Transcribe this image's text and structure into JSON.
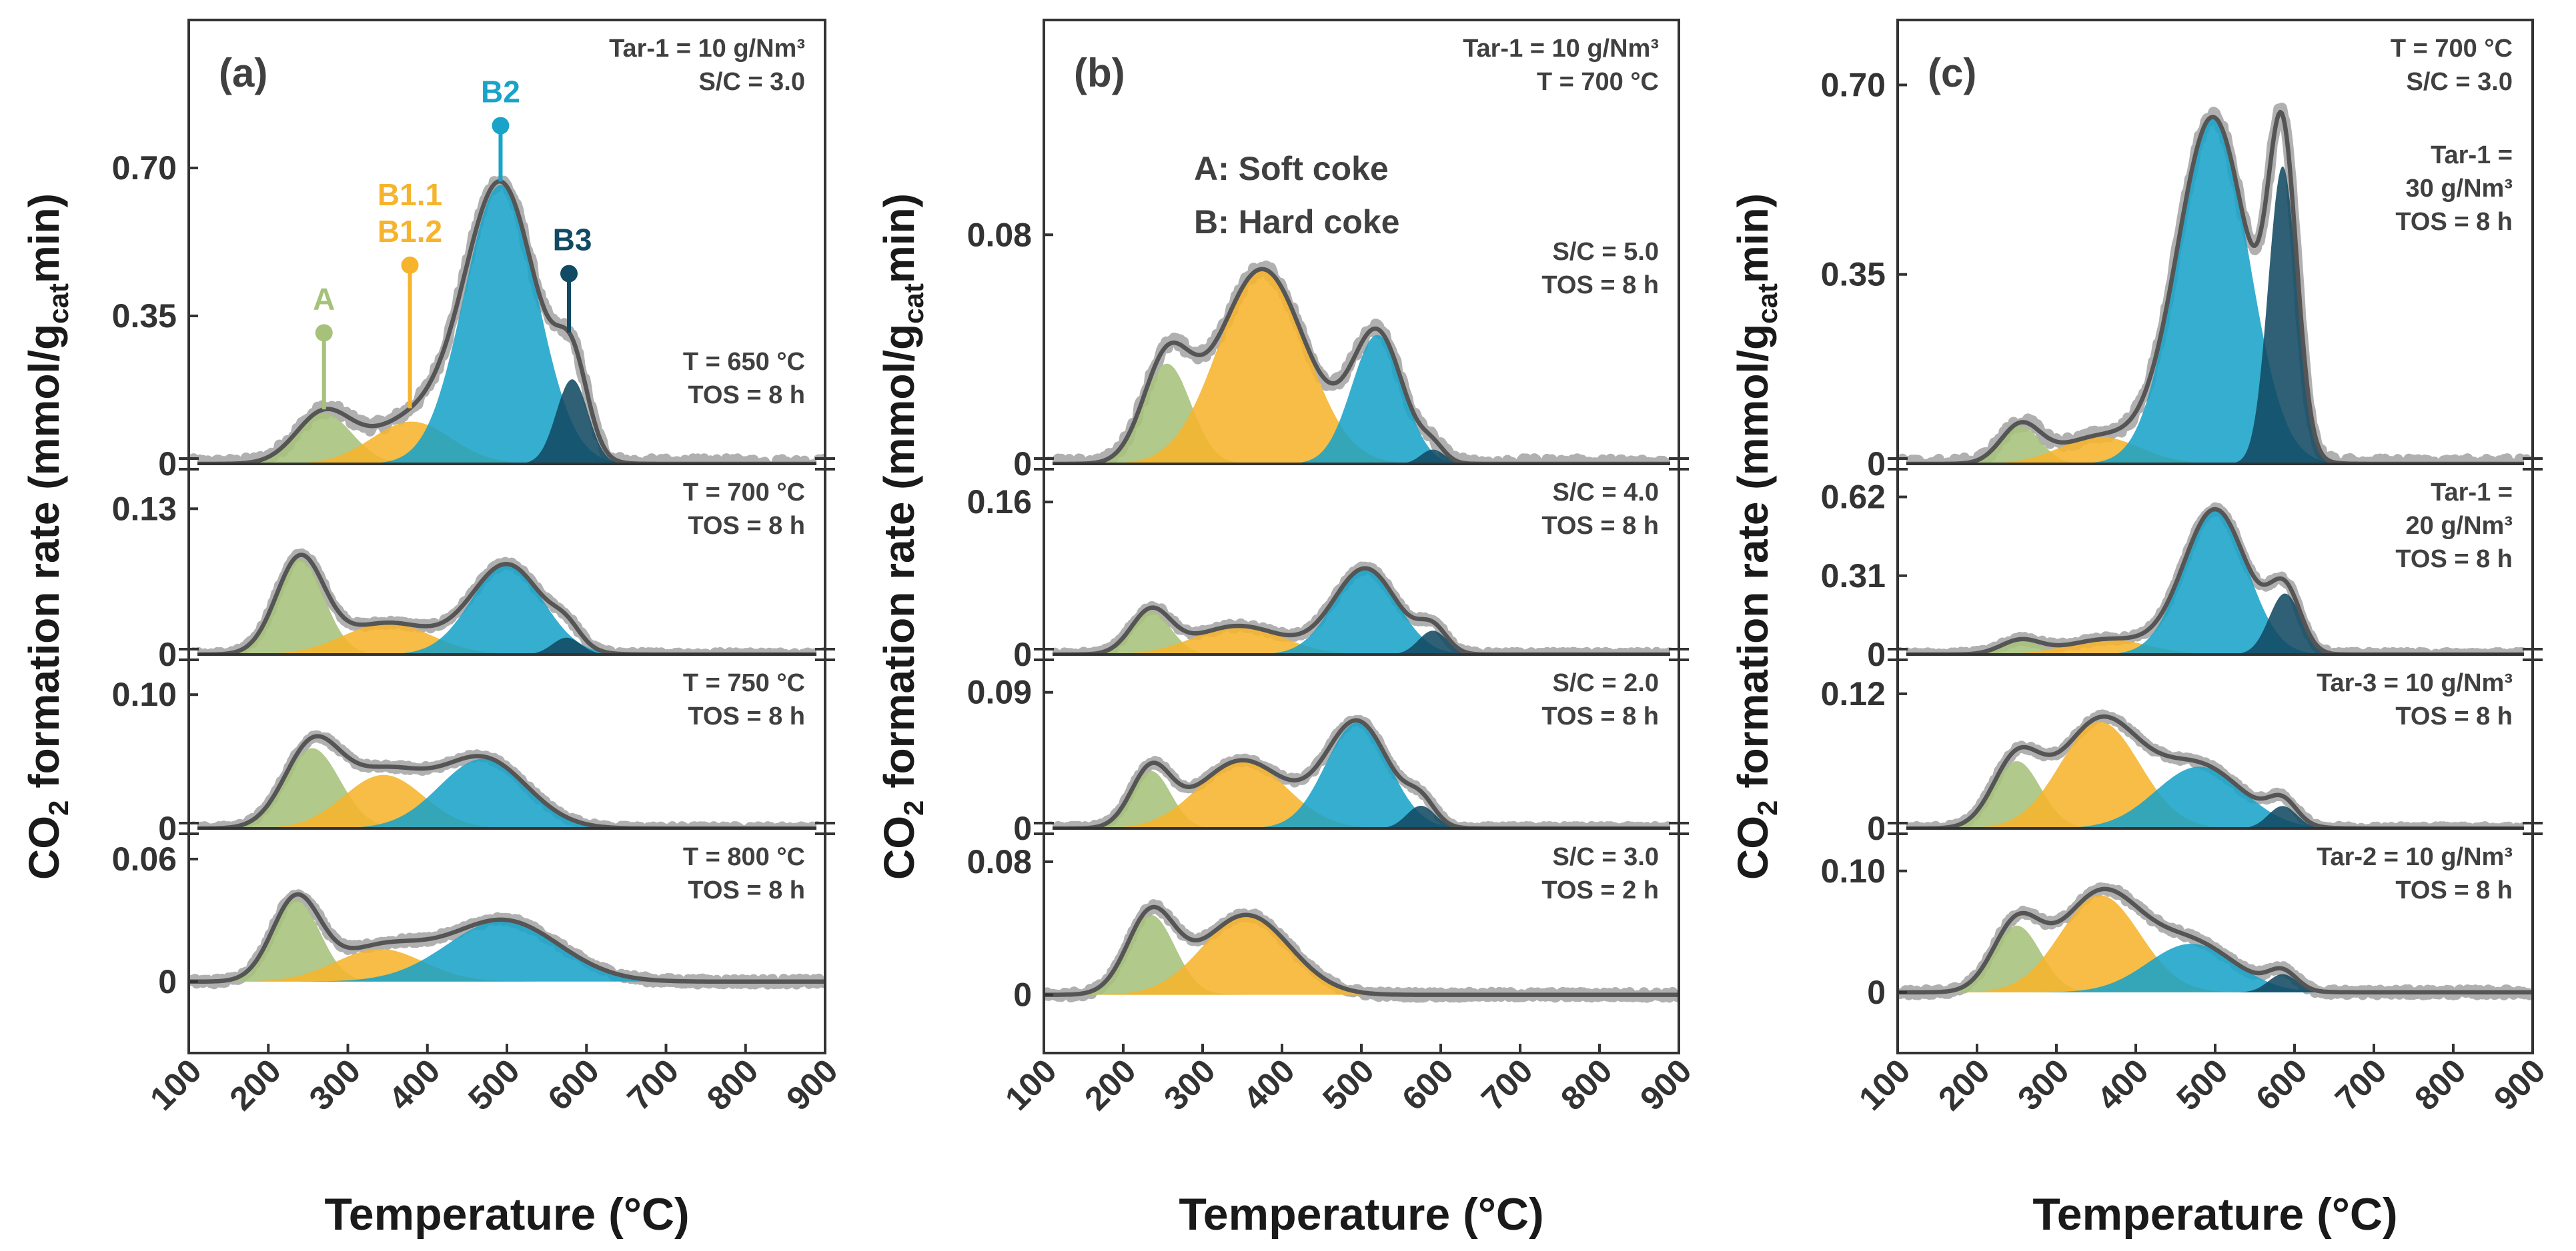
{
  "chart_data": {
    "type": "area",
    "figure_kind": "CO2 temperature-programmed oxidation profiles with deconvoluted peaks",
    "colors": {
      "A": "#a6c27a",
      "B1": "#f6b42c",
      "B2": "#1aa3c8",
      "B3": "#124a63",
      "fit": "#555555",
      "raw": "#b0b0b0",
      "axis": "#333333"
    },
    "xlabel": "Temperature (°C)",
    "ylabel_main": "CO",
    "ylabel_sub": "2",
    "ylabel_mid": " formation rate (mmol/g",
    "ylabel_cat": "cat",
    "ylabel_end": "min)",
    "x_ticks": [
      "100",
      "200",
      "300",
      "400",
      "500",
      "600",
      "700",
      "800",
      "900"
    ],
    "xlim": [
      100,
      900
    ],
    "panels": [
      {
        "label": "(a)",
        "legend": null,
        "subplots": [
          {
            "id": "a1",
            "ylim": [
              0,
              1.05
            ],
            "y_ticks": [
              {
                "v": 0,
                "label": "0"
              },
              {
                "v": 0.35,
                "label": "0.35"
              },
              {
                "v": 0.7,
                "label": "0.70"
              }
            ],
            "annotations": [
              "Tar-1 = 10 g/Nm³",
              "S/C = 3.0"
            ],
            "annotations2": [
              "T = 650 °C",
              "TOS = 8 h"
            ],
            "peaks": [
              {
                "name": "A",
                "center": 270,
                "height": 0.12,
                "width": 35
              },
              {
                "name": "B1",
                "center": 380,
                "height": 0.1,
                "width": 50
              },
              {
                "name": "B2",
                "center": 492,
                "height": 0.66,
                "width": 46
              },
              {
                "name": "B3",
                "center": 582,
                "height": 0.2,
                "width": 20
              }
            ],
            "markers": [
              {
                "label": "A",
                "x": 270,
                "y": 0.31,
                "color": "A"
              },
              {
                "label": "B1.1",
                "label2": "B1.2",
                "x": 378,
                "y": 0.47,
                "color": "B1"
              },
              {
                "label": "B2",
                "x": 492,
                "y": 0.8,
                "color": "B2"
              },
              {
                "label": "B3",
                "x": 578,
                "y": 0.45,
                "color": "B3"
              }
            ]
          },
          {
            "id": "a2",
            "ylim": [
              0,
              0.17
            ],
            "y_ticks": [
              {
                "v": 0,
                "label": "0"
              },
              {
                "v": 0.13,
                "label": "0.13"
              }
            ],
            "annotations": [
              "T = 700 °C",
              "TOS = 8 h"
            ],
            "peaks": [
              {
                "name": "A",
                "center": 240,
                "height": 0.085,
                "width": 30
              },
              {
                "name": "B1",
                "center": 350,
                "height": 0.028,
                "width": 55
              },
              {
                "name": "B2",
                "center": 500,
                "height": 0.08,
                "width": 45
              },
              {
                "name": "B3",
                "center": 575,
                "height": 0.015,
                "width": 18
              }
            ]
          },
          {
            "id": "a3",
            "ylim": [
              0,
              0.13
            ],
            "y_ticks": [
              {
                "v": 0,
                "label": "0"
              },
              {
                "v": 0.1,
                "label": "0.10"
              }
            ],
            "annotations": [
              "T = 750 °C",
              "TOS = 8 h"
            ],
            "peaks": [
              {
                "name": "A",
                "center": 255,
                "height": 0.06,
                "width": 35
              },
              {
                "name": "B1",
                "center": 345,
                "height": 0.04,
                "width": 50
              },
              {
                "name": "B2",
                "center": 470,
                "height": 0.052,
                "width": 55
              }
            ]
          },
          {
            "id": "a4",
            "ylim": [
              -0.035,
              0.075
            ],
            "y_ticks": [
              {
                "v": 0,
                "label": "0"
              },
              {
                "v": 0.06,
                "label": "0.06"
              }
            ],
            "annotations": [
              "T = 800 °C",
              "TOS = 8 h"
            ],
            "peaks": [
              {
                "name": "A",
                "center": 235,
                "height": 0.04,
                "width": 30
              },
              {
                "name": "B1",
                "center": 340,
                "height": 0.016,
                "width": 55
              },
              {
                "name": "B2",
                "center": 495,
                "height": 0.03,
                "width": 70
              }
            ]
          }
        ]
      },
      {
        "label": "(b)",
        "legend": [
          "A: Soft coke",
          "B: Hard coke"
        ],
        "subplots": [
          {
            "id": "b1",
            "ylim": [
              0,
              0.155
            ],
            "y_ticks": [
              {
                "v": 0,
                "label": "0"
              },
              {
                "v": 0.08,
                "label": "0.08"
              }
            ],
            "annotations": [
              "Tar-1 = 10 g/Nm³",
              "T = 700 °C"
            ],
            "annotations2": [
              "S/C = 5.0",
              "TOS = 8 h"
            ],
            "peaks": [
              {
                "name": "A",
                "center": 255,
                "height": 0.035,
                "width": 30
              },
              {
                "name": "B1",
                "center": 375,
                "height": 0.068,
                "width": 55
              },
              {
                "name": "B2",
                "center": 520,
                "height": 0.045,
                "width": 32
              },
              {
                "name": "B3",
                "center": 590,
                "height": 0.005,
                "width": 15
              }
            ]
          },
          {
            "id": "b2",
            "ylim": [
              0,
              0.2
            ],
            "y_ticks": [
              {
                "v": 0,
                "label": "0"
              },
              {
                "v": 0.16,
                "label": "0.16"
              }
            ],
            "annotations": [
              "S/C = 4.0",
              "TOS = 8 h"
            ],
            "peaks": [
              {
                "name": "A",
                "center": 235,
                "height": 0.045,
                "width": 25
              },
              {
                "name": "B1",
                "center": 345,
                "height": 0.03,
                "width": 55
              },
              {
                "name": "B2",
                "center": 505,
                "height": 0.09,
                "width": 40
              },
              {
                "name": "B3",
                "center": 590,
                "height": 0.025,
                "width": 18
              }
            ]
          },
          {
            "id": "b3",
            "ylim": [
              0,
              0.115
            ],
            "y_ticks": [
              {
                "v": 0,
                "label": "0"
              },
              {
                "v": 0.09,
                "label": "0.09"
              }
            ],
            "annotations": [
              "S/C = 2.0",
              "TOS = 8 h"
            ],
            "peaks": [
              {
                "name": "A",
                "center": 235,
                "height": 0.038,
                "width": 25
              },
              {
                "name": "B1",
                "center": 350,
                "height": 0.045,
                "width": 55
              },
              {
                "name": "B2",
                "center": 495,
                "height": 0.07,
                "width": 40
              },
              {
                "name": "B3",
                "center": 575,
                "height": 0.015,
                "width": 18
              }
            ]
          },
          {
            "id": "b4",
            "ylim": [
              -0.035,
              0.1
            ],
            "y_ticks": [
              {
                "v": 0,
                "label": "0"
              },
              {
                "v": 0.08,
                "label": "0.08"
              }
            ],
            "annotations": [
              "S/C = 3.0",
              "TOS = 2 h"
            ],
            "peaks": [
              {
                "name": "A",
                "center": 235,
                "height": 0.048,
                "width": 30
              },
              {
                "name": "B1",
                "center": 355,
                "height": 0.048,
                "width": 55
              }
            ]
          }
        ]
      },
      {
        "label": "(c)",
        "legend": null,
        "subplots": [
          {
            "id": "c1",
            "ylim": [
              0,
              0.82
            ],
            "y_ticks": [
              {
                "v": 0,
                "label": "0"
              },
              {
                "v": 0.35,
                "label": "0.35"
              },
              {
                "v": 0.7,
                "label": "0.70"
              }
            ],
            "annotations": [
              "T = 700 °C",
              "S/C = 3.0"
            ],
            "annotations2": [
              "Tar-1 =",
              "30 g/Nm³",
              "TOS = 8 h"
            ],
            "peaks": [
              {
                "name": "A",
                "center": 255,
                "height": 0.07,
                "width": 25
              },
              {
                "name": "B1",
                "center": 355,
                "height": 0.05,
                "width": 50
              },
              {
                "name": "B2",
                "center": 497,
                "height": 0.64,
                "width": 45
              },
              {
                "name": "B3",
                "center": 585,
                "height": 0.55,
                "width": 18
              }
            ]
          },
          {
            "id": "c2",
            "ylim": [
              0,
              0.75
            ],
            "y_ticks": [
              {
                "v": 0,
                "label": "0"
              },
              {
                "v": 0.31,
                "label": "0.31"
              },
              {
                "v": 0.62,
                "label": "0.62"
              }
            ],
            "annotations": [
              "Tar-1 =",
              "20 g/Nm³",
              "TOS = 8 h"
            ],
            "peaks": [
              {
                "name": "A",
                "center": 255,
                "height": 0.055,
                "width": 25
              },
              {
                "name": "B1",
                "center": 365,
                "height": 0.06,
                "width": 50
              },
              {
                "name": "B2",
                "center": 500,
                "height": 0.57,
                "width": 40
              },
              {
                "name": "B3",
                "center": 588,
                "height": 0.24,
                "width": 20
              }
            ]
          },
          {
            "id": "c3",
            "ylim": [
              0,
              0.155
            ],
            "y_ticks": [
              {
                "v": 0,
                "label": "0"
              },
              {
                "v": 0.12,
                "label": "0.12"
              }
            ],
            "annotations": [
              "Tar-3 = 10 g/Nm³",
              "TOS = 8 h"
            ],
            "peaks": [
              {
                "name": "A",
                "center": 250,
                "height": 0.06,
                "width": 30
              },
              {
                "name": "B1",
                "center": 355,
                "height": 0.095,
                "width": 50
              },
              {
                "name": "B2",
                "center": 480,
                "height": 0.055,
                "width": 55
              },
              {
                "name": "B3",
                "center": 585,
                "height": 0.02,
                "width": 18
              }
            ]
          },
          {
            "id": "c4",
            "ylim": [
              -0.05,
              0.135
            ],
            "y_ticks": [
              {
                "v": 0,
                "label": "0"
              },
              {
                "v": 0.1,
                "label": "0.10"
              }
            ],
            "annotations": [
              "Tar-2 = 10 g/Nm³",
              "TOS = 8 h"
            ],
            "peaks": [
              {
                "name": "A",
                "center": 250,
                "height": 0.055,
                "width": 30
              },
              {
                "name": "B1",
                "center": 355,
                "height": 0.08,
                "width": 50
              },
              {
                "name": "B2",
                "center": 470,
                "height": 0.04,
                "width": 55
              },
              {
                "name": "B3",
                "center": 585,
                "height": 0.015,
                "width": 18
              }
            ]
          }
        ]
      }
    ]
  }
}
